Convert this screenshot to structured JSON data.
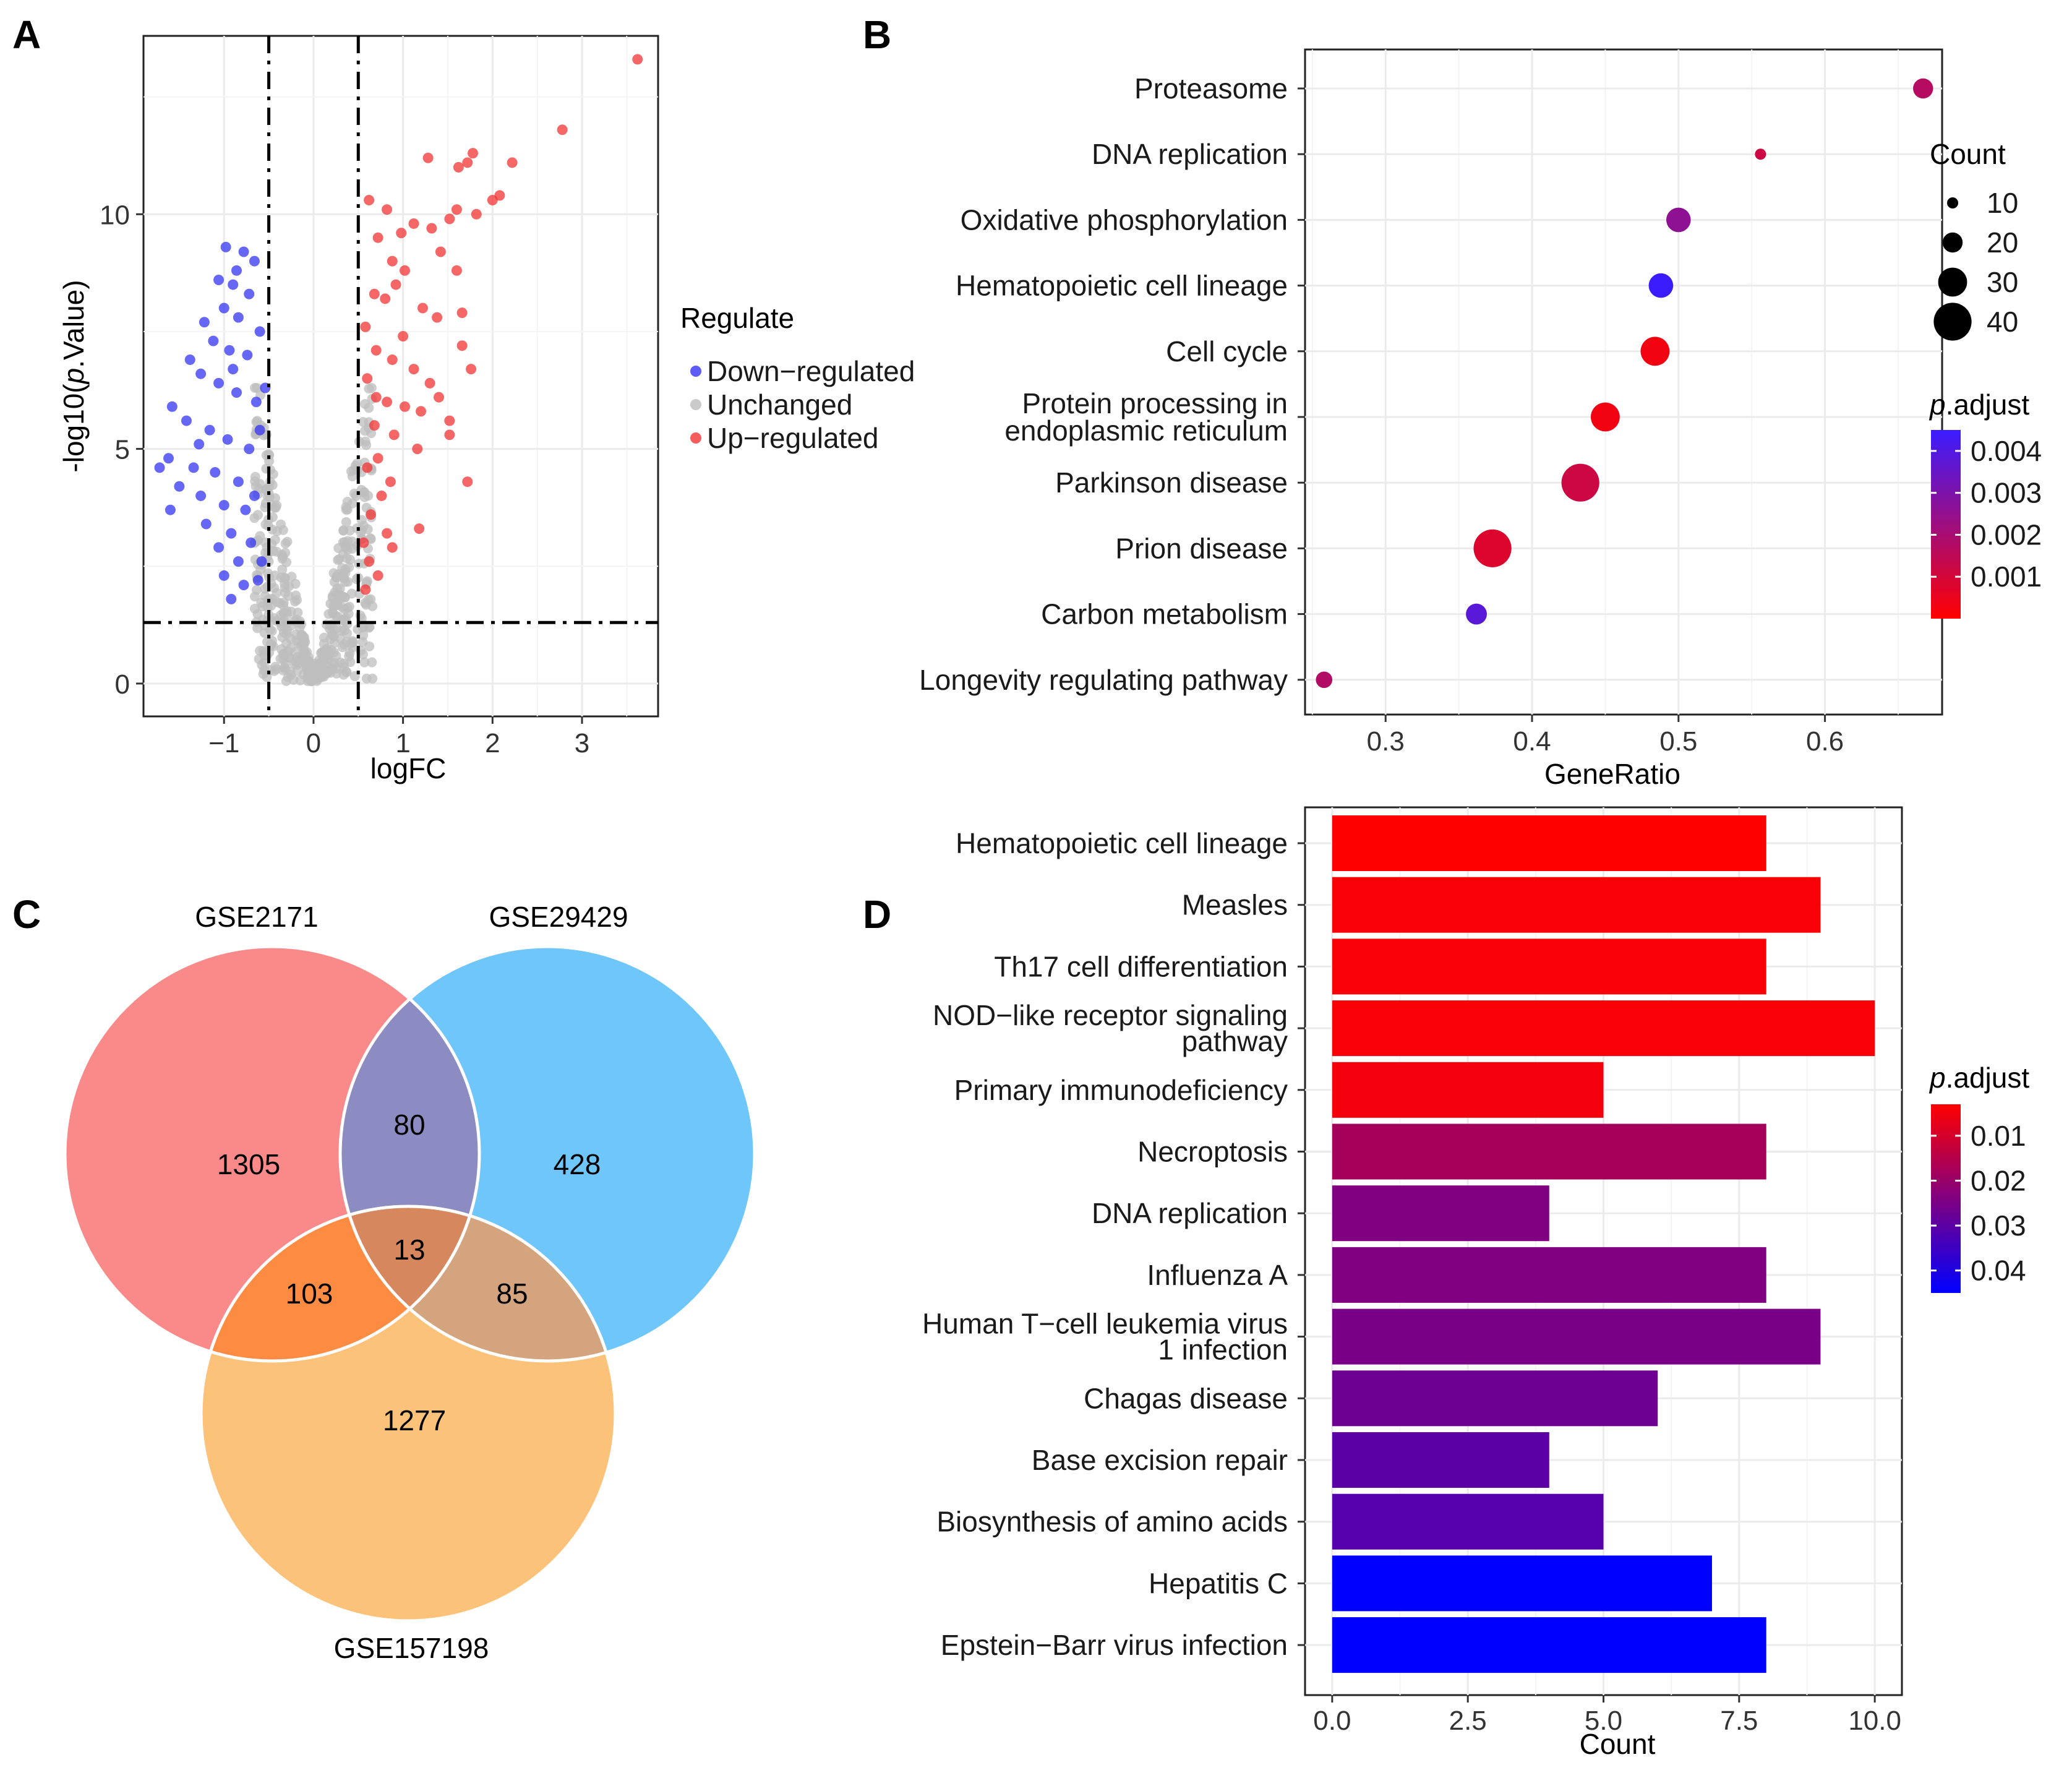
{
  "panels": {
    "a": "A",
    "b": "B",
    "c": "C",
    "d": "D"
  },
  "chart_data": [
    {
      "panel": "A",
      "type": "scatter",
      "title": "",
      "xlabel": "logFC",
      "ylabel_prefix": "-log10(",
      "ylabel_italic": "p",
      "ylabel_suffix": ".Value)",
      "xlim": [
        -1.9,
        3.85
      ],
      "ylim": [
        -0.7,
        13.8
      ],
      "xticks": [
        -1,
        0,
        1,
        2,
        3
      ],
      "yticks": [
        0,
        5,
        10
      ],
      "vlines": [
        -0.5,
        0.5
      ],
      "hline": 1.3,
      "legend": {
        "title": "Regulate",
        "items": [
          {
            "label": "Down−regulated",
            "color": "#3434f2"
          },
          {
            "label": "Unchanged",
            "color": "#bdbdbd"
          },
          {
            "label": "Up−regulated",
            "color": "#f23434"
          }
        ]
      },
      "up_points": [
        [
          3.62,
          13.3
        ],
        [
          2.78,
          11.8
        ],
        [
          2.22,
          11.1
        ],
        [
          1.78,
          11.3
        ],
        [
          1.72,
          11.1
        ],
        [
          1.62,
          11.0
        ],
        [
          1.28,
          11.2
        ],
        [
          2.08,
          10.4
        ],
        [
          2.0,
          10.3
        ],
        [
          1.6,
          10.1
        ],
        [
          1.82,
          10.0
        ],
        [
          1.52,
          9.9
        ],
        [
          1.32,
          9.7
        ],
        [
          1.12,
          9.8
        ],
        [
          0.98,
          9.6
        ],
        [
          0.62,
          10.3
        ],
        [
          0.82,
          10.1
        ],
        [
          0.72,
          9.5
        ],
        [
          0.88,
          9.0
        ],
        [
          1.42,
          9.2
        ],
        [
          1.6,
          8.8
        ],
        [
          1.02,
          8.8
        ],
        [
          0.92,
          8.5
        ],
        [
          0.8,
          8.2
        ],
        [
          0.68,
          8.3
        ],
        [
          1.22,
          8.0
        ],
        [
          1.38,
          7.8
        ],
        [
          1.66,
          7.9
        ],
        [
          1.66,
          7.2
        ],
        [
          1.0,
          7.4
        ],
        [
          0.58,
          7.6
        ],
        [
          0.7,
          7.1
        ],
        [
          0.88,
          6.9
        ],
        [
          1.12,
          6.7
        ],
        [
          1.76,
          6.7
        ],
        [
          1.3,
          6.4
        ],
        [
          0.6,
          6.5
        ],
        [
          0.7,
          6.1
        ],
        [
          0.82,
          6.0
        ],
        [
          1.02,
          5.9
        ],
        [
          1.2,
          5.8
        ],
        [
          1.52,
          5.6
        ],
        [
          0.68,
          5.5
        ],
        [
          0.9,
          5.3
        ],
        [
          1.16,
          5.0
        ],
        [
          0.72,
          4.8
        ],
        [
          0.6,
          4.6
        ],
        [
          0.86,
          4.3
        ],
        [
          1.72,
          4.3
        ],
        [
          0.76,
          4.0
        ],
        [
          0.64,
          3.6
        ],
        [
          1.18,
          3.3
        ],
        [
          0.82,
          3.2
        ],
        [
          0.56,
          3.0
        ],
        [
          0.88,
          2.9
        ],
        [
          0.62,
          2.6
        ],
        [
          0.72,
          2.3
        ],
        [
          0.58,
          2.0
        ],
        [
          1.52,
          5.3
        ],
        [
          1.4,
          6.1
        ]
      ],
      "down_points": [
        [
          -0.98,
          9.3
        ],
        [
          -0.78,
          9.2
        ],
        [
          -0.86,
          8.8
        ],
        [
          -0.66,
          9.0
        ],
        [
          -1.06,
          8.6
        ],
        [
          -0.9,
          8.5
        ],
        [
          -0.72,
          8.3
        ],
        [
          -1.0,
          8.0
        ],
        [
          -1.22,
          7.7
        ],
        [
          -0.84,
          7.8
        ],
        [
          -0.6,
          7.5
        ],
        [
          -1.12,
          7.3
        ],
        [
          -0.94,
          7.1
        ],
        [
          -0.74,
          7.0
        ],
        [
          -1.38,
          6.9
        ],
        [
          -1.26,
          6.6
        ],
        [
          -1.06,
          6.4
        ],
        [
          -0.86,
          6.2
        ],
        [
          -0.64,
          6.0
        ],
        [
          -1.58,
          5.9
        ],
        [
          -1.42,
          5.6
        ],
        [
          -1.16,
          5.4
        ],
        [
          -0.96,
          5.2
        ],
        [
          -0.72,
          5.0
        ],
        [
          -1.62,
          4.8
        ],
        [
          -1.34,
          4.6
        ],
        [
          -1.1,
          4.5
        ],
        [
          -0.84,
          4.3
        ],
        [
          -1.72,
          4.6
        ],
        [
          -1.5,
          4.2
        ],
        [
          -1.26,
          4.0
        ],
        [
          -1.0,
          3.8
        ],
        [
          -0.76,
          3.7
        ],
        [
          -1.6,
          3.7
        ],
        [
          -1.2,
          3.4
        ],
        [
          -0.92,
          3.2
        ],
        [
          -0.7,
          3.0
        ],
        [
          -1.06,
          2.9
        ],
        [
          -0.84,
          2.6
        ],
        [
          -1.0,
          2.3
        ],
        [
          -0.78,
          2.1
        ],
        [
          -0.92,
          1.8
        ],
        [
          -0.62,
          2.2
        ],
        [
          -0.58,
          2.6
        ],
        [
          -0.66,
          4.0
        ],
        [
          -0.6,
          5.4
        ],
        [
          -1.28,
          5.1
        ],
        [
          -0.9,
          6.7
        ],
        [
          -0.54,
          6.3
        ]
      ]
    },
    {
      "panel": "B",
      "type": "scatter",
      "title": "",
      "xlabel": "GeneRatio",
      "ylabel": "",
      "xlim": [
        0.245,
        0.68
      ],
      "xticks": [
        0.3,
        0.4,
        0.5,
        0.6
      ],
      "xticklabels": [
        "0.3",
        "0.4",
        "0.5",
        "0.6"
      ],
      "categories": [
        "Proteasome",
        "DNA replication",
        "Oxidative phosphorylation",
        "Hematopoietic cell lineage",
        "Cell cycle",
        "Protein processing in endoplasmic reticulum",
        "Parkinson disease",
        "Prion disease",
        "Carbon metabolism",
        "Longevity regulating pathway"
      ],
      "category_lines": [
        [
          "Proteasome"
        ],
        [
          "DNA replication"
        ],
        [
          "Oxidative phosphorylation"
        ],
        [
          "Hematopoietic cell lineage"
        ],
        [
          "Cell cycle"
        ],
        [
          "Protein processing in",
          "endoplasmic reticulum"
        ],
        [
          "Parkinson disease"
        ],
        [
          "Prion disease"
        ],
        [
          "Carbon metabolism"
        ],
        [
          "Longevity regulating pathway"
        ]
      ],
      "gene_ratio": [
        0.667,
        0.556,
        0.5,
        0.488,
        0.484,
        0.45,
        0.433,
        0.373,
        0.362,
        0.258
      ],
      "count": [
        20,
        10,
        25,
        25,
        30,
        30,
        40,
        40,
        21,
        16
      ],
      "p_adjust": [
        0.0017,
        0.0012,
        0.0026,
        0.0045,
        0.0003,
        0.0003,
        0.0012,
        0.0008,
        0.0038,
        0.0018
      ],
      "size_legend": {
        "title": "Count",
        "values": [
          10,
          20,
          30,
          40
        ],
        "labels": [
          "10",
          "20",
          "30",
          "40"
        ]
      },
      "color_legend": {
        "title_italic": "p",
        "title_rest": ".adjust",
        "range": [
          0.0,
          0.0045
        ],
        "ticks": [
          0.004,
          0.003,
          0.002,
          0.001
        ],
        "labels": [
          "0.004",
          "0.003",
          "0.002",
          "0.001"
        ],
        "low_color": "#ff0000",
        "high_color": "#3b1cff"
      }
    },
    {
      "panel": "C",
      "type": "venn",
      "sets": [
        {
          "name": "GSE2171",
          "color": "#fa8a8a"
        },
        {
          "name": "GSE29429",
          "color": "#6ec6fb"
        },
        {
          "name": "GSE157198",
          "color": "#fdc27a"
        }
      ],
      "regions": {
        "only_1": "1305",
        "only_2": "428",
        "only_3": "1277",
        "1_2": "80",
        "1_3": "103",
        "2_3": "85",
        "1_2_3": "13"
      },
      "region_colors": {
        "1_2": "#8c8bc2",
        "1_3": "#fd8b42",
        "2_3": "#d4a47e",
        "1_2_3": "#d7875d"
      }
    },
    {
      "panel": "D",
      "type": "bar",
      "orientation": "horizontal",
      "title": "",
      "xlabel": "Count",
      "xlim": [
        -0.5,
        10.5
      ],
      "xticks": [
        0,
        2.5,
        5,
        7.5,
        10
      ],
      "xticklabels": [
        "0.0",
        "2.5",
        "5.0",
        "7.5",
        "10.0"
      ],
      "categories": [
        "Hematopoietic cell lineage",
        "Measles",
        "Th17 cell differentiation",
        "NOD−like receptor signaling pathway",
        "Primary immunodeficiency",
        "Necroptosis",
        "DNA replication",
        "Influenza A",
        "Human T−cell leukemia virus 1 infection",
        "Chagas disease",
        "Base excision repair",
        "Biosynthesis of amino acids",
        "Hepatitis C",
        "Epstein−Barr virus infection"
      ],
      "category_lines": [
        [
          "Hematopoietic cell lineage"
        ],
        [
          "Measles"
        ],
        [
          "Th17 cell differentiation"
        ],
        [
          "NOD−like receptor signaling",
          "pathway"
        ],
        [
          "Primary immunodeficiency"
        ],
        [
          "Necroptosis"
        ],
        [
          "DNA replication"
        ],
        [
          "Influenza A"
        ],
        [
          "Human T−cell leukemia virus",
          "1 infection"
        ],
        [
          "Chagas disease"
        ],
        [
          "Base excision repair"
        ],
        [
          "Biosynthesis of amino acids"
        ],
        [
          "Hepatitis C"
        ],
        [
          "Epstein−Barr virus infection"
        ]
      ],
      "values": [
        8,
        9,
        8,
        10,
        5,
        8,
        4,
        8,
        9,
        6,
        4,
        5,
        7,
        8
      ],
      "p_adjust": [
        0.003,
        0.004,
        0.004,
        0.004,
        0.005,
        0.018,
        0.024,
        0.024,
        0.025,
        0.027,
        0.03,
        0.031,
        0.045,
        0.045
      ],
      "color_legend": {
        "title_italic": "p",
        "title_rest": ".adjust",
        "range": [
          0.003,
          0.045
        ],
        "ticks": [
          0.01,
          0.02,
          0.03,
          0.04
        ],
        "labels": [
          "0.01",
          "0.02",
          "0.03",
          "0.04"
        ],
        "low_color": "#ff0000",
        "high_color": "#0000ff"
      }
    }
  ]
}
